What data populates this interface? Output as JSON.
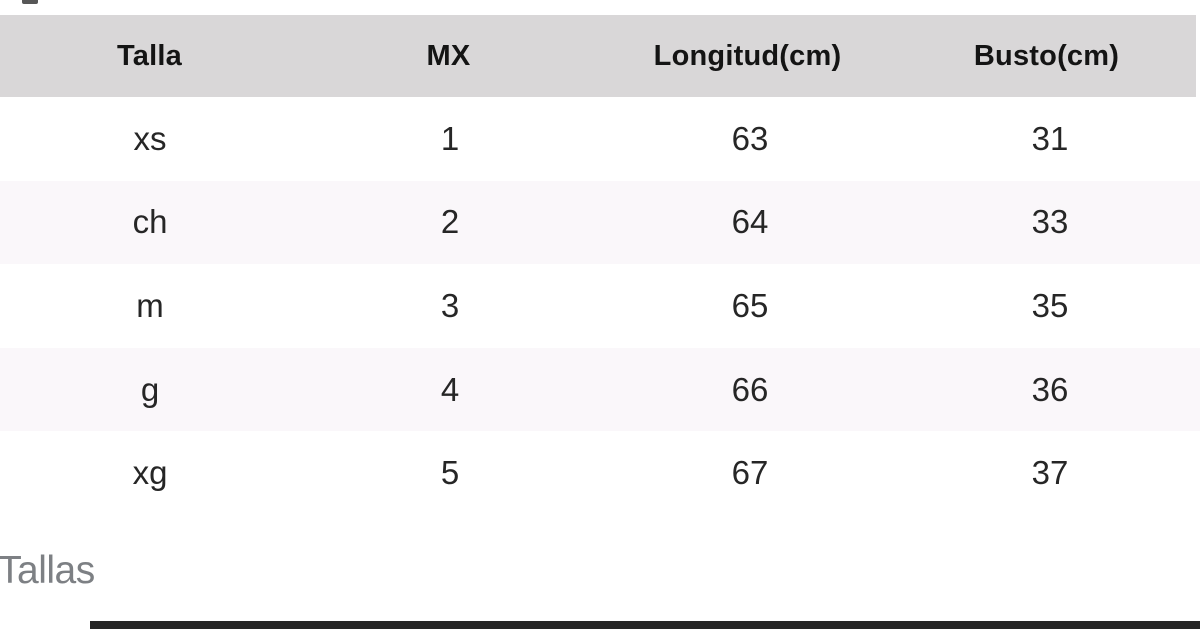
{
  "table": {
    "headers": [
      "Talla",
      "MX",
      "Longitud(cm)",
      "Busto(cm)"
    ],
    "rows": [
      [
        "xs",
        "1",
        "63",
        "31"
      ],
      [
        "ch",
        "2",
        "64",
        "33"
      ],
      [
        "m",
        "3",
        "65",
        "35"
      ],
      [
        "g",
        "4",
        "66",
        "36"
      ],
      [
        "xg",
        "5",
        "67",
        "37"
      ]
    ]
  },
  "caption": "Tallas",
  "colors": {
    "header_bg": "#d9d7d8",
    "stripe_bg": "#faf7fa",
    "header_text": "#141414",
    "cell_text": "#262626",
    "caption_text": "#7d8084",
    "progress_bar": "#262626"
  }
}
